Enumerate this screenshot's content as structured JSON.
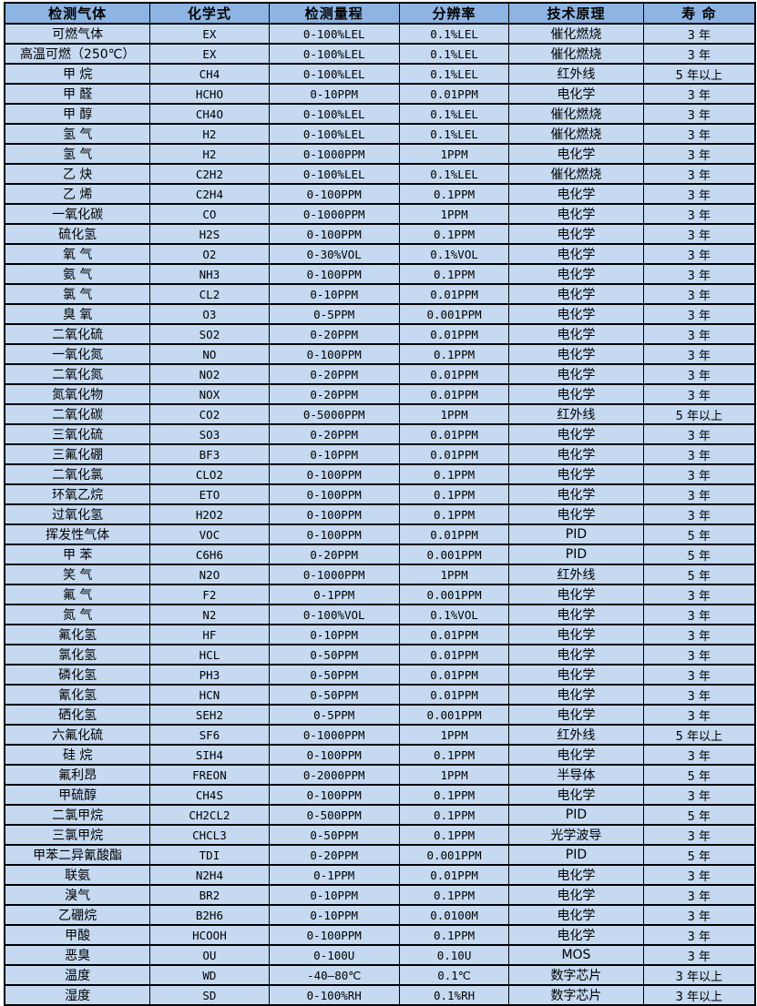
{
  "colors": {
    "header_bg": "#8DB4E2",
    "row_bg": "#C5D9F1",
    "grid_border": "#000000",
    "text": "#000000",
    "page_bg": "#FFFFFF"
  },
  "table": {
    "headers": [
      "检测气体",
      "化学式",
      "检测量程",
      "分辨率",
      "技术原理",
      "寿 命"
    ],
    "rows": [
      [
        "可燃气体",
        "EX",
        "0-100%LEL",
        "0.1%LEL",
        "催化燃烧",
        "3 年"
      ],
      [
        "高温可燃（250℃）",
        "EX",
        "0-100%LEL",
        "0.1%LEL",
        "催化燃烧",
        "3 年"
      ],
      [
        "甲 烷",
        "CH4",
        "0-100%LEL",
        "0.1%LEL",
        "红外线",
        "5 年以上"
      ],
      [
        "甲 醛",
        "HCHO",
        "0-10PPM",
        "0.01PPM",
        "电化学",
        "3 年"
      ],
      [
        "甲 醇",
        "CH4O",
        "0-100%LEL",
        "0.1%LEL",
        "催化燃烧",
        "3 年"
      ],
      [
        "氢 气",
        "H2",
        "0-100%LEL",
        "0.1%LEL",
        "催化燃烧",
        "3 年"
      ],
      [
        "氢 气",
        "H2",
        "0-1000PPM",
        "1PPM",
        "电化学",
        "3 年"
      ],
      [
        "乙 炔",
        "C2H2",
        "0-100%LEL",
        "0.1%LEL",
        "催化燃烧",
        "3 年"
      ],
      [
        "乙 烯",
        "C2H4",
        "0-100PPM",
        "0.1PPM",
        "电化学",
        "3 年"
      ],
      [
        "一氧化碳",
        "CO",
        "0-1000PPM",
        "1PPM",
        "电化学",
        "3 年"
      ],
      [
        "硫化氢",
        "H2S",
        "0-100PPM",
        "0.1PPM",
        "电化学",
        "3 年"
      ],
      [
        "氧 气",
        "O2",
        "0-30%VOL",
        "0.1%VOL",
        "电化学",
        "3 年"
      ],
      [
        "氨 气",
        "NH3",
        "0-100PPM",
        "0.1PPM",
        "电化学",
        "3 年"
      ],
      [
        "氯 气",
        "CL2",
        "0-10PPM",
        "0.01PPM",
        "电化学",
        "3 年"
      ],
      [
        "臭 氧",
        "O3",
        "0-5PPM",
        "0.001PPM",
        "电化学",
        "3 年"
      ],
      [
        "二氧化硫",
        "SO2",
        "0-20PPM",
        "0.01PPM",
        "电化学",
        "3 年"
      ],
      [
        "一氧化氮",
        "NO",
        "0-100PPM",
        "0.1PPM",
        "电化学",
        "3 年"
      ],
      [
        "二氧化氮",
        "NO2",
        "0-20PPM",
        "0.01PPM",
        "电化学",
        "3 年"
      ],
      [
        "氮氧化物",
        "NOX",
        "0-20PPM",
        "0.01PPM",
        "电化学",
        "3 年"
      ],
      [
        "二氧化碳",
        "CO2",
        "0-5000PPM",
        "1PPM",
        "红外线",
        "5 年以上"
      ],
      [
        "三氧化硫",
        "SO3",
        "0-20PPM",
        "0.01PPM",
        "电化学",
        "3 年"
      ],
      [
        "三氟化硼",
        "BF3",
        "0-10PPM",
        "0.01PPM",
        "电化学",
        "3 年"
      ],
      [
        "二氧化氯",
        "CLO2",
        "0-100PPM",
        "0.1PPM",
        "电化学",
        "3 年"
      ],
      [
        "环氧乙烷",
        "ETO",
        "0-100PPM",
        "0.1PPM",
        "电化学",
        "3 年"
      ],
      [
        "过氧化氢",
        "H2O2",
        "0-100PPM",
        "0.1PPM",
        "电化学",
        "3 年"
      ],
      [
        "挥发性气体",
        "VOC",
        "0-100PPM",
        "0.01PPM",
        "PID",
        "5 年"
      ],
      [
        "甲 苯",
        "C6H6",
        "0-20PPM",
        "0.001PPM",
        "PID",
        "5 年"
      ],
      [
        "笑 气",
        "N2O",
        "0-1000PPM",
        "1PPM",
        "红外线",
        "5 年"
      ],
      [
        "氟 气",
        "F2",
        "0-1PPM",
        "0.001PPM",
        "电化学",
        "3 年"
      ],
      [
        "氮 气",
        "N2",
        "0-100%VOL",
        "0.1%VOL",
        "电化学",
        "3 年"
      ],
      [
        "氟化氢",
        "HF",
        "0-10PPM",
        "0.01PPM",
        "电化学",
        "3 年"
      ],
      [
        "氯化氢",
        "HCL",
        "0-50PPM",
        "0.01PPM",
        "电化学",
        "3 年"
      ],
      [
        "磷化氢",
        "PH3",
        "0-50PPM",
        "0.01PPM",
        "电化学",
        "3 年"
      ],
      [
        "氰化氢",
        "HCN",
        "0-50PPM",
        "0.01PPM",
        "电化学",
        "3 年"
      ],
      [
        "硒化氢",
        "SEH2",
        "0-5PPM",
        "0.001PPM",
        "电化学",
        "3 年"
      ],
      [
        "六氟化硫",
        "SF6",
        "0-1000PPM",
        "1PPM",
        "红外线",
        "5 年以上"
      ],
      [
        "硅 烷",
        "SIH4",
        "0-100PPM",
        "0.1PPM",
        "电化学",
        "3 年"
      ],
      [
        "氟利昂",
        "FREON",
        "0-2000PPM",
        "1PPM",
        "半导体",
        "5 年"
      ],
      [
        "甲硫醇",
        "CH4S",
        "0-100PPM",
        "0.1PPM",
        "电化学",
        "3 年"
      ],
      [
        "二氯甲烷",
        "CH2CL2",
        "0-500PPM",
        "0.1PPM",
        "PID",
        "5 年"
      ],
      [
        "三氯甲烷",
        "CHCL3",
        "0-50PPM",
        "0.1PPM",
        "光学波导",
        "3 年"
      ],
      [
        "甲苯二异氰酸酯",
        "TDI",
        "0-20PPM",
        "0.001PPM",
        "PID",
        "5 年"
      ],
      [
        "联氨",
        "N2H4",
        "0-1PPM",
        "0.01PPM",
        "电化学",
        "3 年"
      ],
      [
        "溴气",
        "BR2",
        "0-10PPM",
        "0.1PPM",
        "电化学",
        "3 年"
      ],
      [
        "乙硼烷",
        "B2H6",
        "0-10PPM",
        "0.0100M",
        "电化学",
        "3 年"
      ],
      [
        "甲酸",
        "HCOOH",
        "0-100PPM",
        "0.1PPM",
        "电化学",
        "3 年"
      ],
      [
        "恶臭",
        "OU",
        "0-100U",
        "0.10U",
        "MOS",
        "3 年"
      ],
      [
        "温度",
        "WD",
        "-40—80℃",
        "0.1℃",
        "数字芯片",
        "3 年以上"
      ],
      [
        "湿度",
        "SD",
        "0-100%RH",
        "0.1%RH",
        "数字芯片",
        "3 年以上"
      ]
    ],
    "column_widths_pct": [
      19.4,
      15.8,
      17.4,
      14.6,
      17.9,
      14.9
    ]
  }
}
